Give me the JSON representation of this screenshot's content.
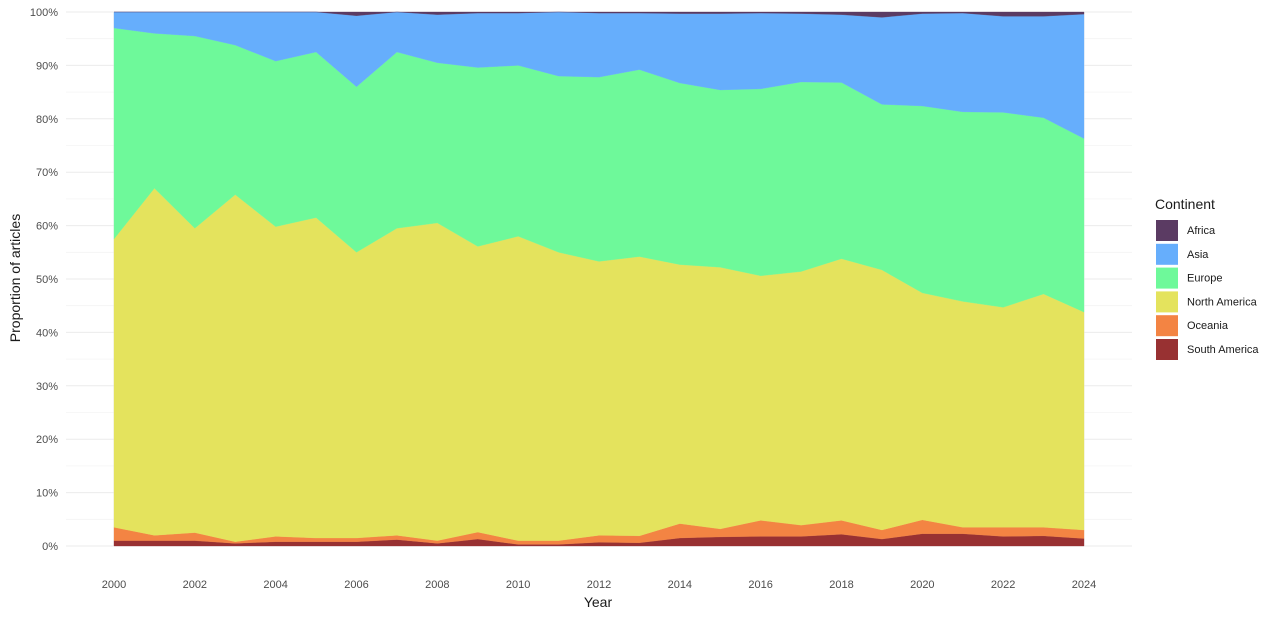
{
  "chart_data": {
    "type": "area",
    "stacked": true,
    "normalized": true,
    "xlabel": "Year",
    "ylabel": "Proportion of articles",
    "x": [
      2000,
      2001,
      2002,
      2003,
      2004,
      2005,
      2006,
      2007,
      2008,
      2009,
      2010,
      2011,
      2012,
      2013,
      2014,
      2015,
      2016,
      2017,
      2018,
      2019,
      2020,
      2021,
      2022,
      2023,
      2024
    ],
    "xlim": [
      2000,
      2024
    ],
    "x_ticks": [
      "2000",
      "2002",
      "2004",
      "2006",
      "2008",
      "2010",
      "2012",
      "2014",
      "2016",
      "2018",
      "2020",
      "2022",
      "2024"
    ],
    "ylim": [
      0,
      1
    ],
    "y_ticks": [
      "0%",
      "10%",
      "20%",
      "30%",
      "40%",
      "50%",
      "60%",
      "70%",
      "80%",
      "90%",
      "100%"
    ],
    "grid": true,
    "legend_title": "Continent",
    "legend_position": "right",
    "stack_order_bottom_to_top": [
      "South America",
      "Oceania",
      "North America",
      "Europe",
      "Asia",
      "Africa"
    ],
    "series": [
      {
        "name": "Africa",
        "color": "#5b3b63",
        "values": [
          0.0,
          0.0,
          0.0,
          0.0,
          0.0,
          0.0,
          0.007,
          0.0,
          0.005,
          0.002,
          0.002,
          0.0,
          0.002,
          0.002,
          0.003,
          0.003,
          0.002,
          0.003,
          0.005,
          0.01,
          0.003,
          0.002,
          0.008,
          0.008,
          0.004
        ]
      },
      {
        "name": "Asia",
        "color": "#66aefc",
        "values": [
          0.03,
          0.04,
          0.045,
          0.062,
          0.092,
          0.075,
          0.133,
          0.075,
          0.09,
          0.102,
          0.098,
          0.12,
          0.12,
          0.106,
          0.13,
          0.143,
          0.142,
          0.128,
          0.127,
          0.163,
          0.173,
          0.185,
          0.18,
          0.19,
          0.233
        ]
      },
      {
        "name": "Europe",
        "color": "#6ef99a",
        "values": [
          0.395,
          0.29,
          0.36,
          0.28,
          0.31,
          0.31,
          0.31,
          0.33,
          0.3,
          0.335,
          0.32,
          0.33,
          0.345,
          0.35,
          0.34,
          0.332,
          0.35,
          0.355,
          0.33,
          0.31,
          0.35,
          0.355,
          0.365,
          0.33,
          0.325
        ]
      },
      {
        "name": "North America",
        "color": "#e4e35d",
        "values": [
          0.54,
          0.65,
          0.57,
          0.65,
          0.58,
          0.6,
          0.535,
          0.575,
          0.595,
          0.535,
          0.57,
          0.54,
          0.513,
          0.523,
          0.485,
          0.49,
          0.458,
          0.475,
          0.49,
          0.487,
          0.425,
          0.423,
          0.412,
          0.437,
          0.408
        ]
      },
      {
        "name": "Oceania",
        "color": "#f38443",
        "values": [
          0.025,
          0.01,
          0.015,
          0.003,
          0.01,
          0.007,
          0.007,
          0.008,
          0.005,
          0.013,
          0.007,
          0.007,
          0.013,
          0.013,
          0.027,
          0.015,
          0.03,
          0.021,
          0.026,
          0.017,
          0.026,
          0.012,
          0.017,
          0.016,
          0.016
        ]
      },
      {
        "name": "South America",
        "color": "#983132",
        "values": [
          0.01,
          0.01,
          0.01,
          0.005,
          0.008,
          0.008,
          0.008,
          0.012,
          0.005,
          0.013,
          0.003,
          0.003,
          0.007,
          0.006,
          0.015,
          0.017,
          0.018,
          0.018,
          0.022,
          0.013,
          0.023,
          0.023,
          0.018,
          0.019,
          0.014
        ]
      }
    ]
  }
}
